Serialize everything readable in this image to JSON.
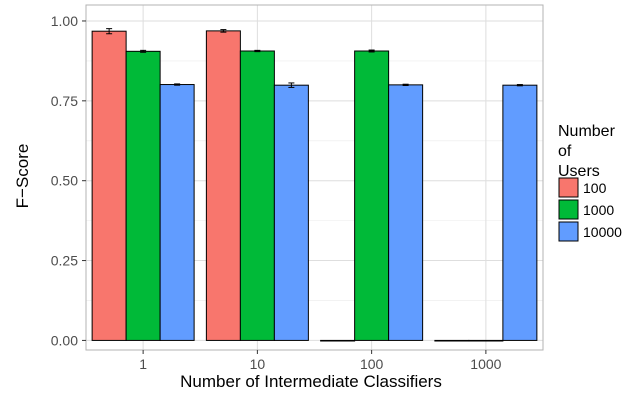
{
  "chart_data": {
    "type": "bar",
    "title": "",
    "xlabel": "Number of Intermediate Classifiers",
    "ylabel": "F−Score",
    "categories": [
      "1",
      "10",
      "100",
      "1000"
    ],
    "ylim": [
      -0.03,
      1.05
    ],
    "yticks": [
      0.0,
      0.25,
      0.5,
      0.75,
      1.0
    ],
    "ytick_labels": [
      "0.00",
      "0.25",
      "0.50",
      "0.75",
      "1.00"
    ],
    "grid": true,
    "legend_title": "Number\nof\nUsers",
    "legend_position": "right",
    "series": [
      {
        "name": "100",
        "color": "#F8766D",
        "values": [
          0.968,
          0.969,
          0.0,
          0.0
        ],
        "errors": [
          0.008,
          0.004,
          0.0,
          0.0
        ]
      },
      {
        "name": "1000",
        "color": "#00BA38",
        "values": [
          0.905,
          0.906,
          0.906,
          0.0
        ],
        "errors": [
          0.003,
          0.002,
          0.003,
          0.0
        ]
      },
      {
        "name": "10000",
        "color": "#619CFF",
        "values": [
          0.801,
          0.799,
          0.8,
          0.799
        ],
        "errors": [
          0.002,
          0.007,
          0.002,
          0.002
        ]
      }
    ]
  }
}
